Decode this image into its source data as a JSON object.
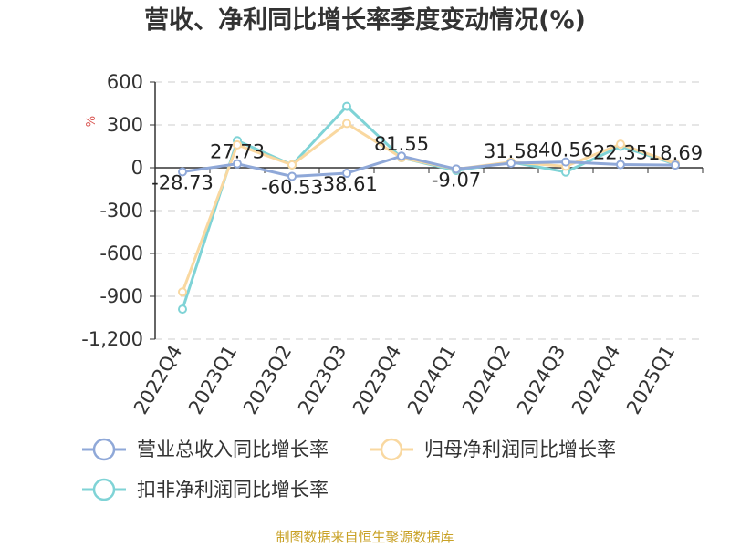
{
  "chart_data": {
    "type": "line",
    "title": "营收、净利同比增长率季度变动情况(%)",
    "unit_label": "%",
    "categories": [
      "2022Q4",
      "2023Q1",
      "2023Q2",
      "2023Q3",
      "2023Q4",
      "2024Q1",
      "2024Q2",
      "2024Q3",
      "2024Q4",
      "2025Q1"
    ],
    "ylim": [
      -1200,
      600
    ],
    "yticks": [
      600,
      300,
      0,
      -300,
      -600,
      -900,
      -1200
    ],
    "ytick_labels": [
      "600",
      "300",
      "0",
      "-300",
      "-600",
      "-900",
      "-1,200"
    ],
    "grid": true,
    "legend_position": "bottom",
    "series": [
      {
        "name": "营业总收入同比增长率",
        "color": "#8fa8d8",
        "values": [
          -28.73,
          27.73,
          -60.53,
          -38.61,
          81.55,
          -9.07,
          31.58,
          40.56,
          22.35,
          18.69
        ],
        "labels": [
          "-28.73",
          "27.73",
          "-60.53",
          "-38.61",
          "81.55",
          "-9.07",
          "31.58",
          "40.56",
          "22.35",
          "18.69"
        ]
      },
      {
        "name": "归母净利润同比增长率",
        "color": "#f9d8a0",
        "values": [
          -870,
          160,
          20,
          310,
          70,
          -10,
          40,
          10,
          165,
          30
        ]
      },
      {
        "name": "扣非净利润同比增长率",
        "color": "#7fd3d6",
        "values": [
          -990,
          190,
          20,
          430,
          70,
          -20,
          40,
          -30,
          150,
          25
        ]
      }
    ]
  },
  "source": {
    "text": "制图数据来自恒生聚源数据库",
    "color": "#c9a227"
  }
}
